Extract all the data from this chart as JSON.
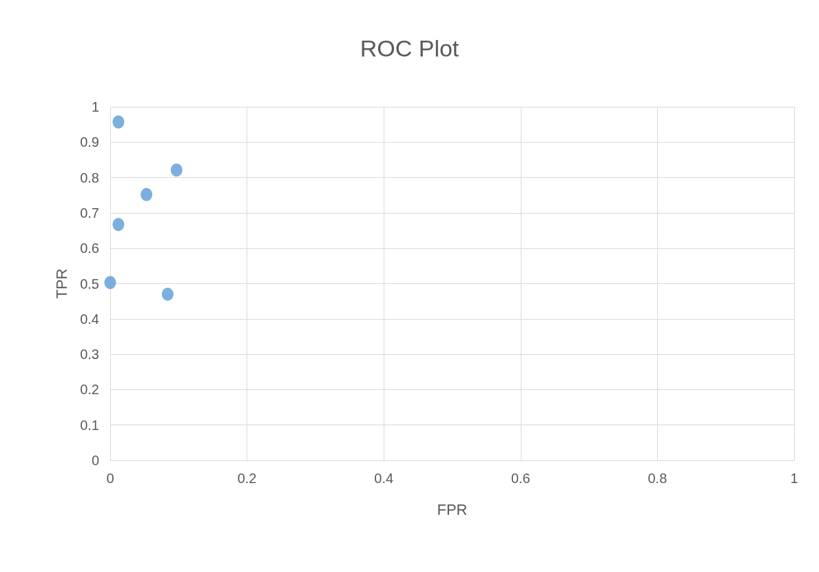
{
  "chart_data": {
    "type": "scatter",
    "title": "ROC Plot",
    "xlabel": "FPR",
    "ylabel": "TPR",
    "x": [
      0.012,
      0.097,
      0.053,
      0.012,
      0.0,
      0.084
    ],
    "series": [
      {
        "color": "#5b9bd5",
        "values": [
          0.957,
          0.821,
          0.752,
          0.667,
          0.503,
          0.47
        ]
      }
    ],
    "xlim": [
      0,
      1
    ],
    "xticks": [
      0,
      0.2,
      0.4,
      0.6,
      0.8,
      1
    ],
    "ylim": [
      0,
      1
    ],
    "yticks": [
      0,
      0.1,
      0.2,
      0.3,
      0.4,
      0.5,
      0.6,
      0.7,
      0.8,
      0.9,
      1
    ],
    "grid": true,
    "marker": "circle"
  }
}
